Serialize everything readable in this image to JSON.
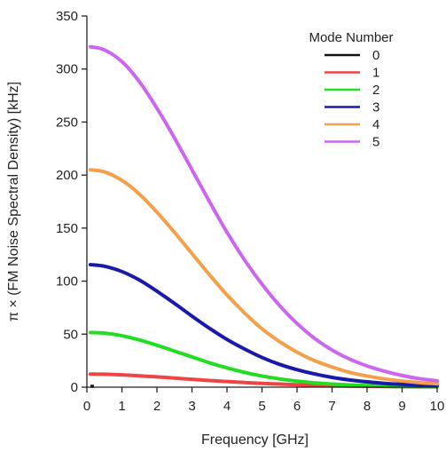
{
  "chart_data": {
    "type": "line",
    "title": "",
    "xlabel": "Frequency [GHz]",
    "ylabel": "π × (FM Noise Spectral Density) [kHz]",
    "xlim": [
      0,
      10
    ],
    "ylim": [
      0,
      350
    ],
    "xticks": [
      0,
      1,
      2,
      3,
      4,
      5,
      6,
      7,
      8,
      9,
      10
    ],
    "yticks": [
      0,
      50,
      100,
      150,
      200,
      250,
      300,
      350
    ],
    "grid": false,
    "legend": {
      "title": "Mode Number",
      "position": "top-right"
    },
    "x": [
      0.1,
      0.5,
      1,
      1.5,
      2,
      2.5,
      3,
      3.5,
      4,
      4.5,
      5,
      5.5,
      6,
      6.5,
      7,
      7.5,
      8,
      8.5,
      9,
      9.5,
      10
    ],
    "series": [
      {
        "name": "0",
        "color": "#111111",
        "values": [
          0,
          0,
          0,
          0,
          0,
          0,
          0,
          0,
          0,
          0,
          0,
          0,
          0,
          0,
          0,
          0,
          0,
          0,
          0,
          0,
          0
        ]
      },
      {
        "name": "1",
        "color": "#ee4444",
        "values": [
          12.4,
          12.2,
          11.6,
          10.7,
          9.7,
          8.6,
          7.4,
          6.3,
          5.3,
          4.4,
          3.6,
          2.9,
          2.3,
          1.8,
          1.4,
          1.1,
          0.8,
          0.6,
          0.5,
          0.35,
          0.25
        ]
      },
      {
        "name": "2",
        "color": "#22dd22",
        "values": [
          51.5,
          51,
          48.5,
          44.5,
          39.5,
          34,
          28.5,
          23,
          18.2,
          14,
          10.5,
          7.8,
          5.7,
          4.1,
          2.9,
          2.1,
          1.5,
          1.1,
          0.8,
          0.6,
          0.4
        ]
      },
      {
        "name": "3",
        "color": "#1a1aaa",
        "values": [
          115.5,
          114,
          109,
          101,
          90.5,
          79,
          67,
          55.5,
          45,
          36,
          28,
          21.5,
          16.5,
          12.5,
          9.2,
          6.8,
          5,
          3.6,
          2.7,
          2,
          1.5
        ]
      },
      {
        "name": "4",
        "color": "#f4a04a",
        "values": [
          205,
          203,
          195,
          182,
          165,
          146,
          126,
          106,
          87,
          70,
          55,
          43,
          33,
          25,
          19,
          14,
          10.5,
          7.8,
          5.8,
          4.3,
          3.2
        ]
      },
      {
        "name": "5",
        "color": "#cc66ee",
        "values": [
          321,
          318,
          307,
          288,
          263,
          235,
          205,
          175,
          146,
          120,
          97,
          77,
          60,
          46,
          35,
          26.5,
          20,
          15,
          11,
          8,
          6
        ]
      }
    ]
  }
}
